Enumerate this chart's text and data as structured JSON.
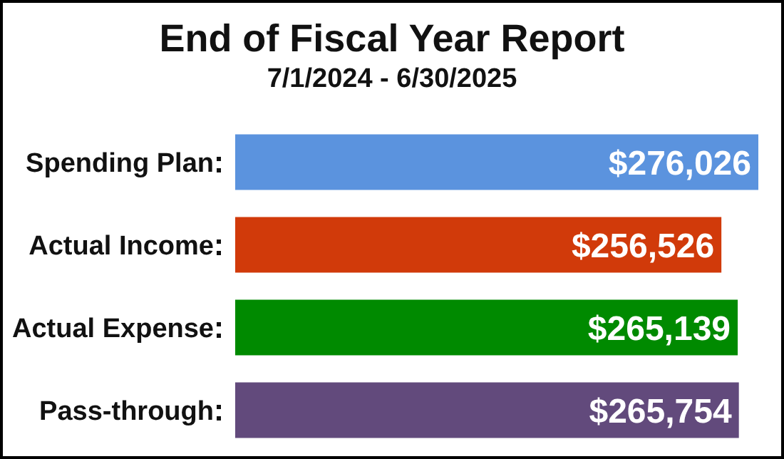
{
  "chart_data": {
    "type": "bar",
    "orientation": "horizontal",
    "title": "End of Fiscal Year Report",
    "subtitle": "7/1/2024 - 6/30/2025",
    "categories": [
      "Spending Plan",
      "Actual Income",
      "Actual Expense",
      "Pass-through"
    ],
    "values": [
      276026,
      256526,
      265139,
      265754
    ],
    "colors": [
      "#5b93de",
      "#d13a0a",
      "#008a00",
      "#624a7c"
    ],
    "value_labels": [
      "$276,026",
      "$256,526",
      "$265,139",
      "$265,754"
    ]
  }
}
